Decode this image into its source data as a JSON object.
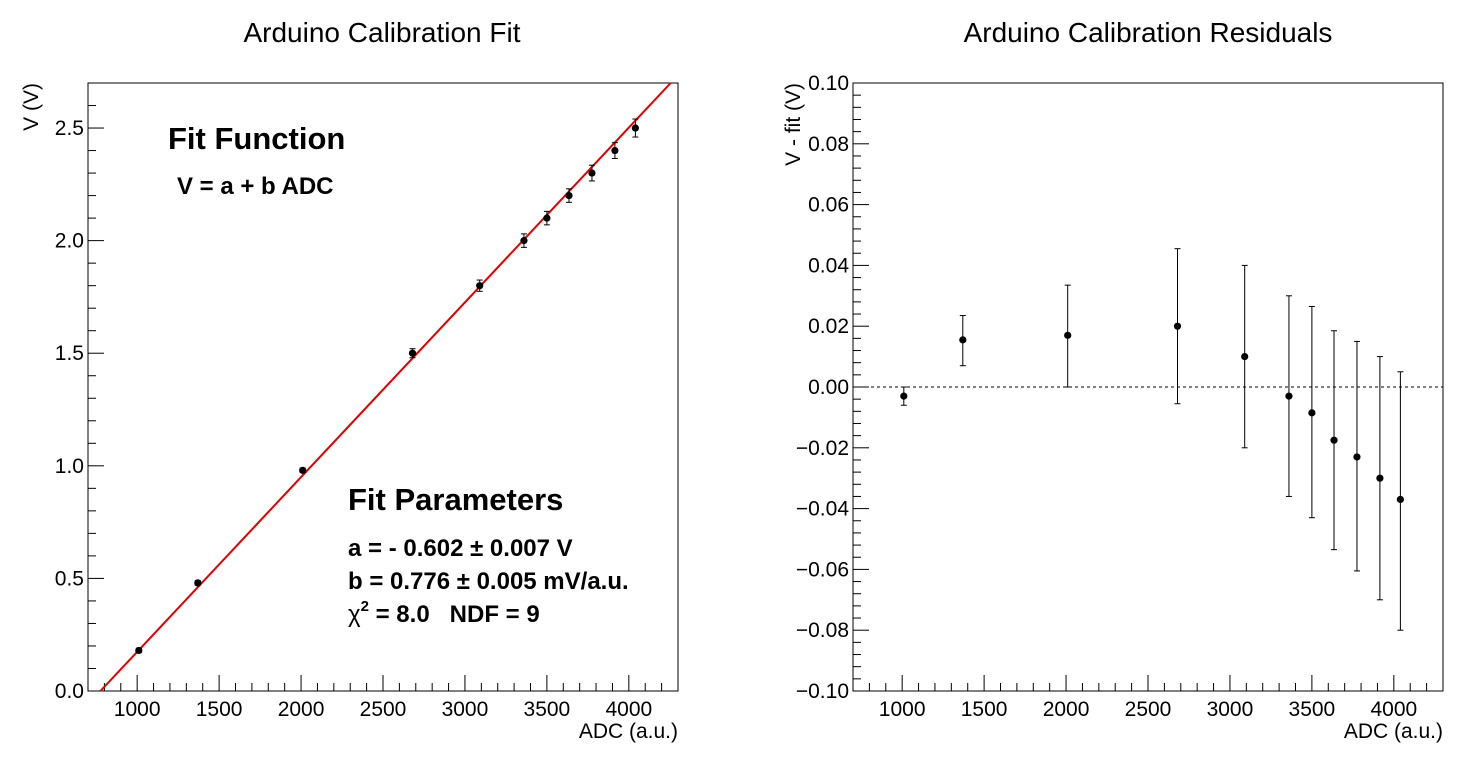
{
  "chart_data": [
    {
      "type": "scatter",
      "title": "Arduino Calibration Fit",
      "xlabel": "ADC (a.u.)",
      "ylabel": "V (V)",
      "xlim": [
        700,
        4300
      ],
      "ylim": [
        0.0,
        2.7
      ],
      "grid": false,
      "x_ticks": [
        1000,
        1500,
        2000,
        2500,
        3000,
        3500,
        4000
      ],
      "y_ticks": [
        "0.0",
        "0.5",
        "1.0",
        "1.5",
        "2.0",
        "2.5"
      ],
      "series": [
        {
          "x": [
            1010,
            1370,
            2010,
            2680,
            3090,
            3360,
            3500,
            3635,
            3775,
            3915,
            4040
          ],
          "y": [
            0.18,
            0.48,
            0.98,
            1.5,
            1.8,
            2.0,
            2.1,
            2.2,
            2.3,
            2.4,
            2.5
          ],
          "yerr": [
            0.01,
            0.01,
            0.01,
            0.02,
            0.025,
            0.03,
            0.03,
            0.03,
            0.035,
            0.035,
            0.04
          ]
        }
      ],
      "fit_line": {
        "function": "V = a + b ADC",
        "a": -0.602,
        "b_per_adc": 0.000776,
        "color": "#e00000"
      },
      "annotations": {
        "fit_function_heading": "Fit Function",
        "fit_function": "V = a + b ADC",
        "fit_parameters_heading": "Fit Parameters",
        "param_a": "a = - 0.602 ± 0.007 V",
        "param_b": "b = 0.776 ± 0.005 mV/a.u.",
        "chi2_symbol": "χ",
        "chi2_exponent": "2",
        "chi2_rest": " = 8.0   NDF = 9"
      }
    },
    {
      "type": "scatter",
      "title": "Arduino Calibration Residuals",
      "xlabel": "ADC (a.u.)",
      "ylabel": "V - fit (V)",
      "xlim": [
        700,
        4300
      ],
      "ylim": [
        -0.1,
        0.1
      ],
      "grid": false,
      "zero_line": "dashed",
      "x_ticks": [
        1000,
        1500,
        2000,
        2500,
        3000,
        3500,
        4000
      ],
      "y_ticks": [
        "0.10",
        "0.08",
        "0.06",
        "0.04",
        "0.02",
        "0.00",
        "−0.02",
        "−0.04",
        "−0.06",
        "−0.08",
        "−0.10"
      ],
      "series": [
        {
          "x": [
            1010,
            1370,
            2010,
            2680,
            3090,
            3360,
            3500,
            3635,
            3775,
            3915,
            4040
          ],
          "y": [
            -0.003,
            0.0155,
            0.017,
            0.02,
            0.01,
            -0.003,
            -0.0085,
            -0.0175,
            -0.023,
            -0.03,
            -0.037
          ],
          "yerr_low": [
            0.003,
            0.0085,
            0.017,
            0.0255,
            0.03,
            0.033,
            0.0345,
            0.036,
            0.0375,
            0.04,
            0.043
          ],
          "yerr_high": [
            0.003,
            0.008,
            0.0165,
            0.0255,
            0.03,
            0.033,
            0.035,
            0.036,
            0.038,
            0.04,
            0.042
          ]
        }
      ]
    }
  ]
}
